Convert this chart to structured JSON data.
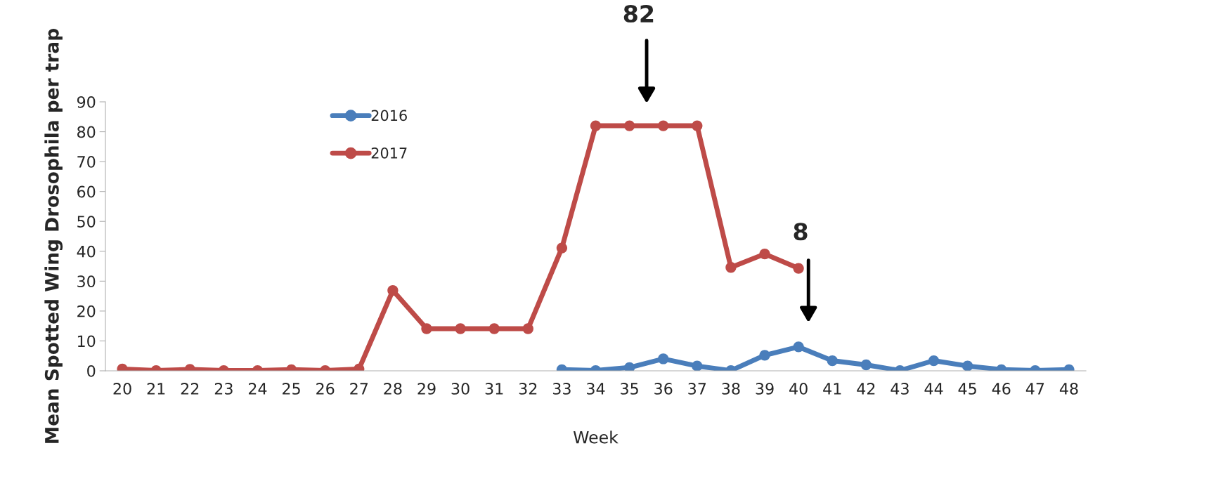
{
  "chart_data": {
    "type": "line",
    "xlabel": "Week",
    "ylabel": "Mean Spotted Wing Drosophila per trap",
    "categories": [
      "20",
      "21",
      "22",
      "23",
      "24",
      "25",
      "26",
      "27",
      "28",
      "29",
      "30",
      "31",
      "32",
      "33",
      "34",
      "35",
      "36",
      "37",
      "38",
      "39",
      "40",
      "41",
      "42",
      "43",
      "44",
      "45",
      "46",
      "47",
      "48"
    ],
    "series": [
      {
        "name": "2016",
        "color": "#4a7ebb",
        "values": [
          null,
          null,
          null,
          null,
          null,
          null,
          null,
          null,
          null,
          null,
          null,
          null,
          null,
          0.4,
          0.1,
          1.1,
          4.0,
          1.6,
          0.1,
          5.2,
          8,
          3.4,
          2.0,
          0.1,
          3.4,
          1.6,
          0.4,
          0.1,
          0.4
        ]
      },
      {
        "name": "2017",
        "color": "#be4b48",
        "values": [
          0.6,
          0.1,
          0.5,
          0.1,
          0.1,
          0.4,
          0.1,
          0.6,
          26.9,
          14.1,
          14.1,
          14.1,
          14.1,
          41.1,
          82,
          82,
          82,
          82,
          34.6,
          39.1,
          34.3,
          null,
          null,
          null,
          null,
          null,
          null,
          null,
          null
        ]
      }
    ],
    "ylim": [
      0,
      90
    ],
    "yticks": [
      0,
      10,
      20,
      30,
      40,
      50,
      60,
      70,
      80,
      90
    ],
    "grid": false,
    "legend": "top",
    "marker": "circle",
    "line_style": "solid",
    "annotations": [
      "82",
      "8"
    ]
  }
}
